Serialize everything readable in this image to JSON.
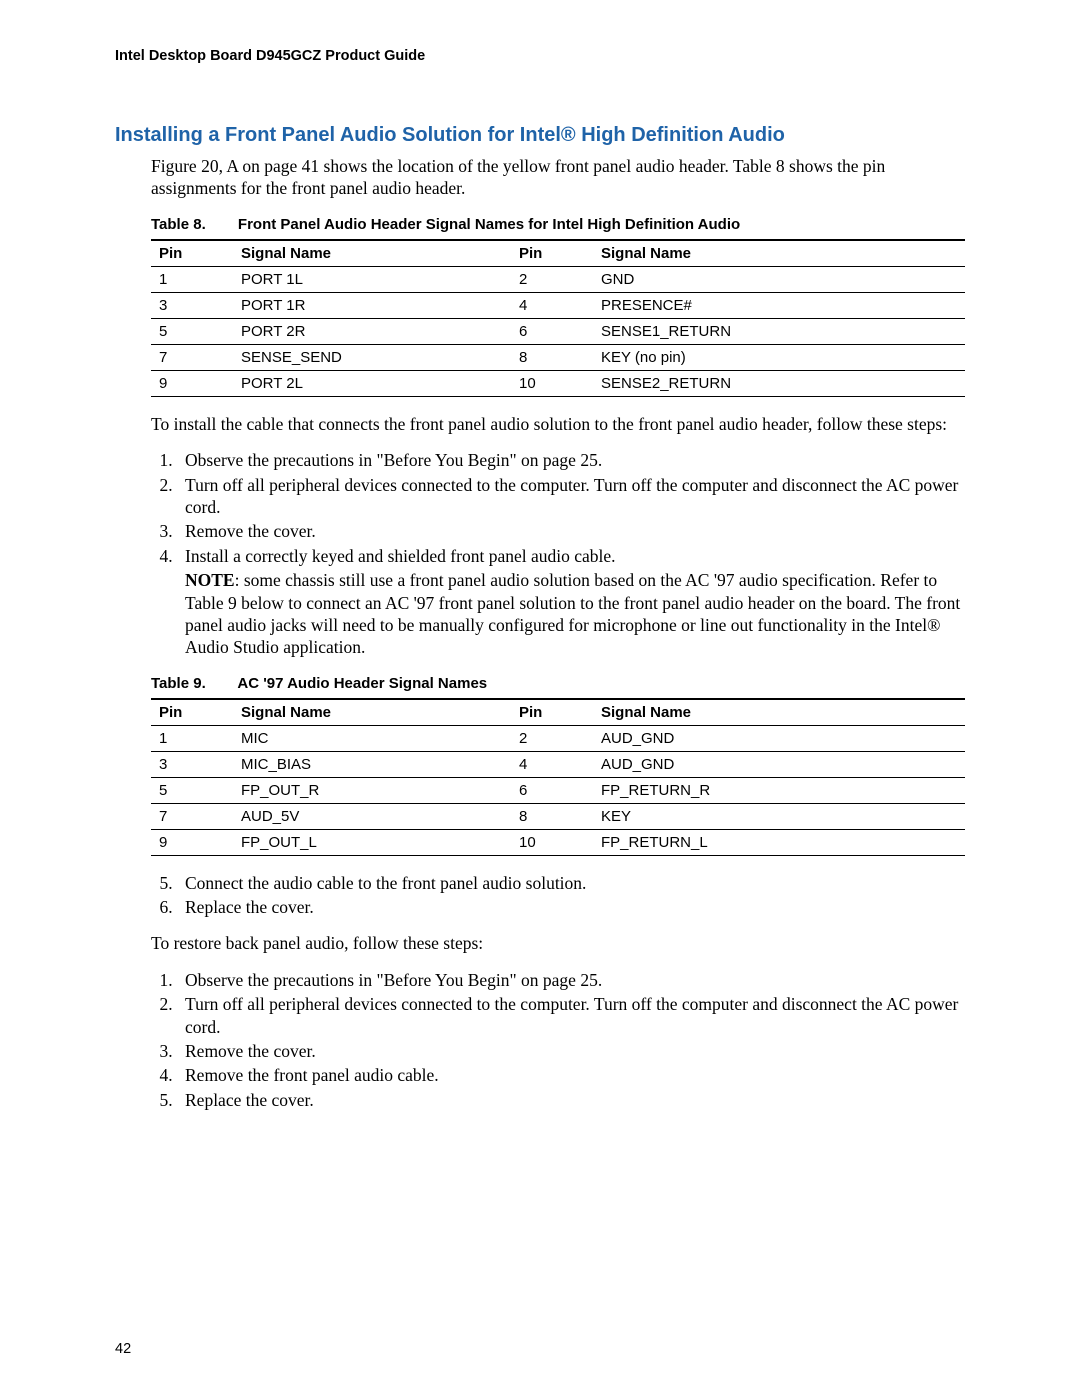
{
  "header": {
    "running": "Intel Desktop Board D945GCZ Product Guide"
  },
  "section": {
    "title": "Installing a Front Panel Audio Solution for Intel® High Definition Audio",
    "intro": "Figure 20, A on page 41 shows the location of the yellow front panel audio header.  Table 8 shows the pin assignments for the front panel audio header.",
    "install_intro": "To install the cable that connects the front panel audio solution to the front panel audio header, follow these steps:",
    "steps_a": [
      "Observe the precautions in \"Before You Begin\" on page 25.",
      "Turn off all peripheral devices connected to the computer.  Turn off the computer and disconnect the AC power cord.",
      "Remove the cover.",
      "Install a correctly keyed and shielded front panel audio cable."
    ],
    "note_label": "NOTE",
    "note_text": ": some chassis still use a front panel audio solution based on the AC '97 audio specification.  Refer to Table 9 below to connect an AC '97 front panel solution to the front panel audio header on the board.  The front panel audio jacks will need to be manually configured for microphone or line out functionality in the Intel® Audio Studio application.",
    "steps_b": [
      "Connect the audio cable to the front panel audio solution.",
      "Replace the cover."
    ],
    "restore_intro": "To restore back panel audio, follow these steps:",
    "restore_steps": [
      "Observe the precautions in \"Before You Begin\" on page 25.",
      "Turn off all peripheral devices connected to the computer.  Turn off the computer and disconnect the AC power cord.",
      "Remove the cover.",
      "Remove the front panel audio cable.",
      "Replace the cover."
    ]
  },
  "table8": {
    "number": "Table 8.",
    "title": "Front Panel Audio Header Signal Names for Intel High Definition Audio",
    "headers": [
      "Pin",
      "Signal Name",
      "Pin",
      "Signal Name"
    ],
    "rows": [
      [
        "1",
        "PORT 1L",
        "2",
        "GND"
      ],
      [
        "3",
        "PORT 1R",
        "4",
        "PRESENCE#"
      ],
      [
        "5",
        "PORT 2R",
        "6",
        "SENSE1_RETURN"
      ],
      [
        "7",
        "SENSE_SEND",
        "8",
        "KEY (no pin)"
      ],
      [
        "9",
        "PORT 2L",
        "10",
        "SENSE2_RETURN"
      ]
    ]
  },
  "table9": {
    "number": "Table 9.",
    "title": "AC '97 Audio Header Signal Names",
    "headers": [
      "Pin",
      "Signal Name",
      "Pin",
      "Signal Name"
    ],
    "rows": [
      [
        "1",
        "MIC",
        "2",
        "AUD_GND"
      ],
      [
        "3",
        "MIC_BIAS",
        "4",
        "AUD_GND"
      ],
      [
        "5",
        "FP_OUT_R",
        "6",
        "FP_RETURN_R"
      ],
      [
        "7",
        "AUD_5V",
        "8",
        "KEY"
      ],
      [
        "9",
        "FP_OUT_L",
        "10",
        "FP_RETURN_L"
      ]
    ]
  },
  "footer": {
    "page": "42"
  }
}
